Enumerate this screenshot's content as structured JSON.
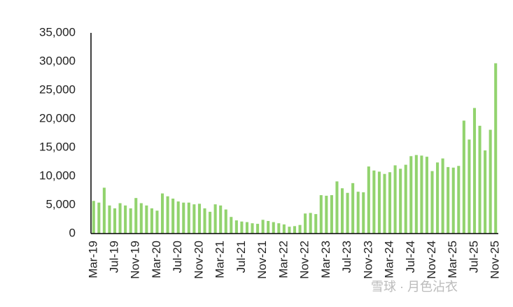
{
  "chart_data": {
    "type": "bar",
    "categories": [
      "Mar-19",
      null,
      null,
      null,
      "Jul-19",
      null,
      null,
      null,
      "Nov-19",
      null,
      null,
      null,
      "Mar-20",
      null,
      null,
      null,
      "Jul-20",
      null,
      null,
      null,
      "Nov-20",
      null,
      null,
      null,
      "Mar-21",
      null,
      null,
      null,
      "Jul-21",
      null,
      null,
      null,
      "Nov-21",
      null,
      null,
      null,
      "Mar-22",
      null,
      null,
      null,
      "Nov-22",
      null,
      null,
      null,
      "Mar-23",
      null,
      null,
      null,
      "Jul-23",
      null,
      null,
      null,
      "Nov-23",
      null,
      null,
      null,
      "Mar-24",
      null,
      null,
      null,
      "Jul-24",
      null,
      null,
      null,
      "Nov-24",
      null,
      null,
      null,
      "Mar-25",
      null,
      null,
      null,
      "Jul-25",
      null,
      null,
      null,
      "Nov-25"
    ],
    "values": [
      5700,
      5400,
      8000,
      4900,
      4400,
      5300,
      4900,
      4400,
      6200,
      5300,
      4900,
      4400,
      4000,
      7000,
      6500,
      6100,
      5600,
      5400,
      5400,
      5100,
      5200,
      4400,
      3800,
      5100,
      4900,
      4200,
      2900,
      2300,
      2100,
      2000,
      1800,
      1700,
      2400,
      2200,
      2000,
      1800,
      1600,
      1200,
      1300,
      1500,
      3500,
      3600,
      3400,
      6700,
      6600,
      6700,
      9100,
      7900,
      7100,
      8800,
      7300,
      7200,
      11700,
      11000,
      10800,
      10400,
      10700,
      11900,
      11300,
      12000,
      13500,
      13700,
      13600,
      13400,
      10900,
      12400,
      13100,
      11600,
      11500,
      11800,
      19700,
      16400,
      21900,
      18800,
      14500,
      18100,
      29700
    ],
    "color": "#92d36e",
    "ylim": [
      0,
      35000
    ],
    "yticks": [
      0,
      {
        "value": 5000,
        "label": "5,000"
      },
      {
        "value": 10000,
        "label": "10,000"
      },
      {
        "value": 15000,
        "label": "15,000"
      },
      {
        "value": 20000,
        "label": "20,000"
      },
      {
        "value": 25000,
        "label": "25,000"
      },
      {
        "value": 30000,
        "label": "30,000"
      },
      {
        "value": 35000,
        "label": "35,000"
      }
    ],
    "grid": false,
    "watermark": "雪球 · 月色沾衣"
  }
}
